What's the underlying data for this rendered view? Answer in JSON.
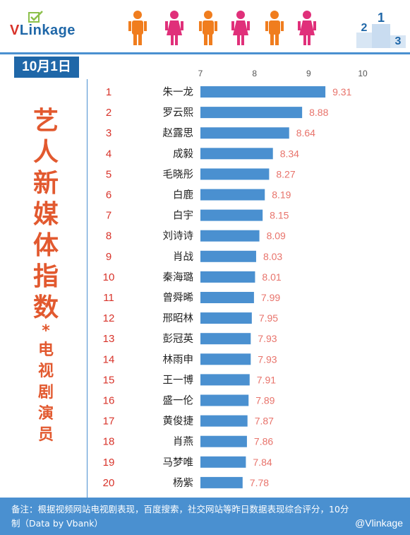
{
  "brand": {
    "logo_text": "VLinkage",
    "logo_v": "V",
    "logo_link": "Link",
    "logo_age": "age"
  },
  "date": "10月1日",
  "title": {
    "main_chars": [
      "艺",
      "人",
      "新",
      "媒",
      "体",
      "指",
      "数"
    ],
    "star": "*",
    "sub_chars": [
      "电",
      "视",
      "剧",
      "演",
      "员"
    ]
  },
  "footer": {
    "note": "备注：根据视频网站电视剧表现，百度搜索，社交网站等昨日数据表现综合评分，10分制（Data by Vbank）",
    "weibo": "@Vlinkage"
  },
  "colors": {
    "bar": "#4a90d0",
    "rank": "#d8332a",
    "value": "#e8736b",
    "axis": "#555555",
    "header_blue": "#1f67a8",
    "title_orange": "#e2592f"
  },
  "chart_data": {
    "type": "bar",
    "orientation": "horizontal",
    "xlim": [
      7,
      10
    ],
    "xticks": [
      7,
      8,
      9,
      10
    ],
    "ranks": [
      1,
      2,
      3,
      4,
      5,
      6,
      7,
      8,
      9,
      10,
      11,
      12,
      13,
      14,
      15,
      16,
      17,
      18,
      19,
      20
    ],
    "categories": [
      "朱一龙",
      "罗云熙",
      "赵露思",
      "成毅",
      "毛晓彤",
      "白鹿",
      "白宇",
      "刘诗诗",
      "肖战",
      "秦海璐",
      "曾舜晞",
      "邢昭林",
      "彭冠英",
      "林雨申",
      "王一博",
      "盛一伦",
      "黄俊捷",
      "肖燕",
      "马梦唯",
      "杨紫"
    ],
    "values": [
      9.31,
      8.88,
      8.64,
      8.34,
      8.27,
      8.19,
      8.15,
      8.09,
      8.03,
      8.01,
      7.99,
      7.95,
      7.93,
      7.93,
      7.91,
      7.89,
      7.87,
      7.86,
      7.84,
      7.78
    ],
    "value_labels": [
      "9.31",
      "8.88",
      "8.64",
      "8.34",
      "8.27",
      "8.19",
      "8.15",
      "8.09",
      "8.03",
      "8.01",
      "7.99",
      "7.95",
      "7.93",
      "7.93",
      "7.91",
      "7.89",
      "7.87",
      "7.86",
      "7.84",
      "7.78"
    ]
  }
}
